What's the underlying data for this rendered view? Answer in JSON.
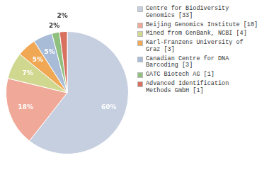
{
  "chart_data": {
    "type": "pie",
    "categories": [
      "Centre for Biodiversity\nGenomics [33]",
      "Beijing Genomics Institute [10]",
      "Mined from GenBank, NCBI [4]",
      "Karl-Franzens University of\nGraz [3]",
      "Canadian Centre for DNA\nBarcoding [3]",
      "GATC Biotech AG [1]",
      "Advanced Identification\nMethods GmbH [1]"
    ],
    "values": [
      60,
      18,
      7,
      5,
      5,
      2,
      2
    ],
    "value_labels": [
      "60%",
      "18%",
      "7%",
      "5%",
      "5%",
      "2%",
      "2%"
    ],
    "colors": [
      "#c5cfe0",
      "#f0a898",
      "#d0d890",
      "#f0a855",
      "#a8bcd8",
      "#90c080",
      "#d87060"
    ],
    "data_labels": true,
    "legend": "right"
  }
}
